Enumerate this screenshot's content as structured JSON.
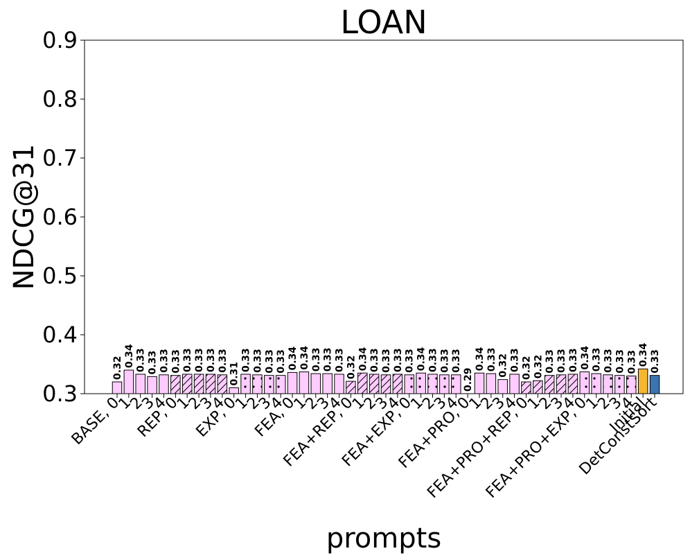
{
  "chart_data": {
    "type": "bar",
    "title": "LOAN",
    "xlabel": "prompts",
    "ylabel": "NDCG@31",
    "ylim": [
      0.3,
      0.9
    ],
    "yticks": [
      "0.3",
      "0.4",
      "0.5",
      "0.6",
      "0.7",
      "0.8",
      "0.9"
    ],
    "grid": false,
    "legend": "none",
    "categories": [
      "BASE, 0",
      "1",
      "2",
      "3",
      "4",
      "REP, 0",
      "1",
      "2",
      "3",
      "4",
      "EXP, 0",
      "1",
      "2",
      "3",
      "4",
      "FEA, 0",
      "1",
      "2",
      "3",
      "4",
      "FEA+REP, 0",
      "1",
      "2",
      "3",
      "4",
      "FEA+EXP, 0",
      "1",
      "2",
      "3",
      "4",
      "FEA+PRO, 0",
      "1",
      "2",
      "3",
      "4",
      "FEA+PRO+REP, 0",
      "1",
      "2",
      "3",
      "4",
      "FEA+PRO+EXP, 0",
      "1",
      "2",
      "3",
      "4",
      "Initial",
      "DetConstSort"
    ],
    "values": [
      0.32,
      0.34,
      0.333,
      0.329,
      0.332,
      0.331,
      0.333,
      0.333,
      0.333,
      0.332,
      0.31,
      0.333,
      0.332,
      0.331,
      0.331,
      0.336,
      0.337,
      0.334,
      0.334,
      0.333,
      0.321,
      0.335,
      0.333,
      0.332,
      0.333,
      0.332,
      0.335,
      0.333,
      0.332,
      0.332,
      0.29,
      0.335,
      0.334,
      0.324,
      0.333,
      0.32,
      0.322,
      0.331,
      0.332,
      0.333,
      0.337,
      0.334,
      0.332,
      0.331,
      0.33,
      0.342,
      0.331
    ],
    "value_labels": [
      "0.32",
      "0.34",
      "0.33",
      "0.33",
      "0.33",
      "0.33",
      "0.33",
      "0.33",
      "0.33",
      "0.33",
      "0.31",
      "0.33",
      "0.33",
      "0.33",
      "0.33",
      "0.34",
      "0.34",
      "0.33",
      "0.33",
      "0.33",
      "0.32",
      "0.34",
      "0.33",
      "0.33",
      "0.33",
      "0.33",
      "0.34",
      "0.33",
      "0.33",
      "0.33",
      "0.29",
      "0.34",
      "0.33",
      "0.32",
      "0.33",
      "0.32",
      "0.32",
      "0.33",
      "0.33",
      "0.33",
      "0.34",
      "0.33",
      "0.33",
      "0.33",
      "0.33",
      "0.34",
      "0.33"
    ],
    "patterns": [
      "none",
      "none",
      "none",
      "none",
      "none",
      "hatch",
      "hatch",
      "hatch",
      "hatch",
      "hatch",
      "dots",
      "dots",
      "dots",
      "dots",
      "dots",
      "none",
      "none",
      "none",
      "none",
      "none",
      "hatch",
      "hatch",
      "hatch",
      "hatch",
      "hatch",
      "dots",
      "dots",
      "dots",
      "dots",
      "dots",
      "none",
      "none",
      "none",
      "none",
      "none",
      "hatch",
      "hatch",
      "hatch",
      "hatch",
      "hatch",
      "dots",
      "dots",
      "dots",
      "dots",
      "dots",
      "none",
      "none"
    ],
    "colors": {
      "prompt_bars": "#ffccff",
      "initial_bar": "#f5b731",
      "detconstsort_bar": "#3a75ad",
      "edge": "#000000"
    }
  }
}
